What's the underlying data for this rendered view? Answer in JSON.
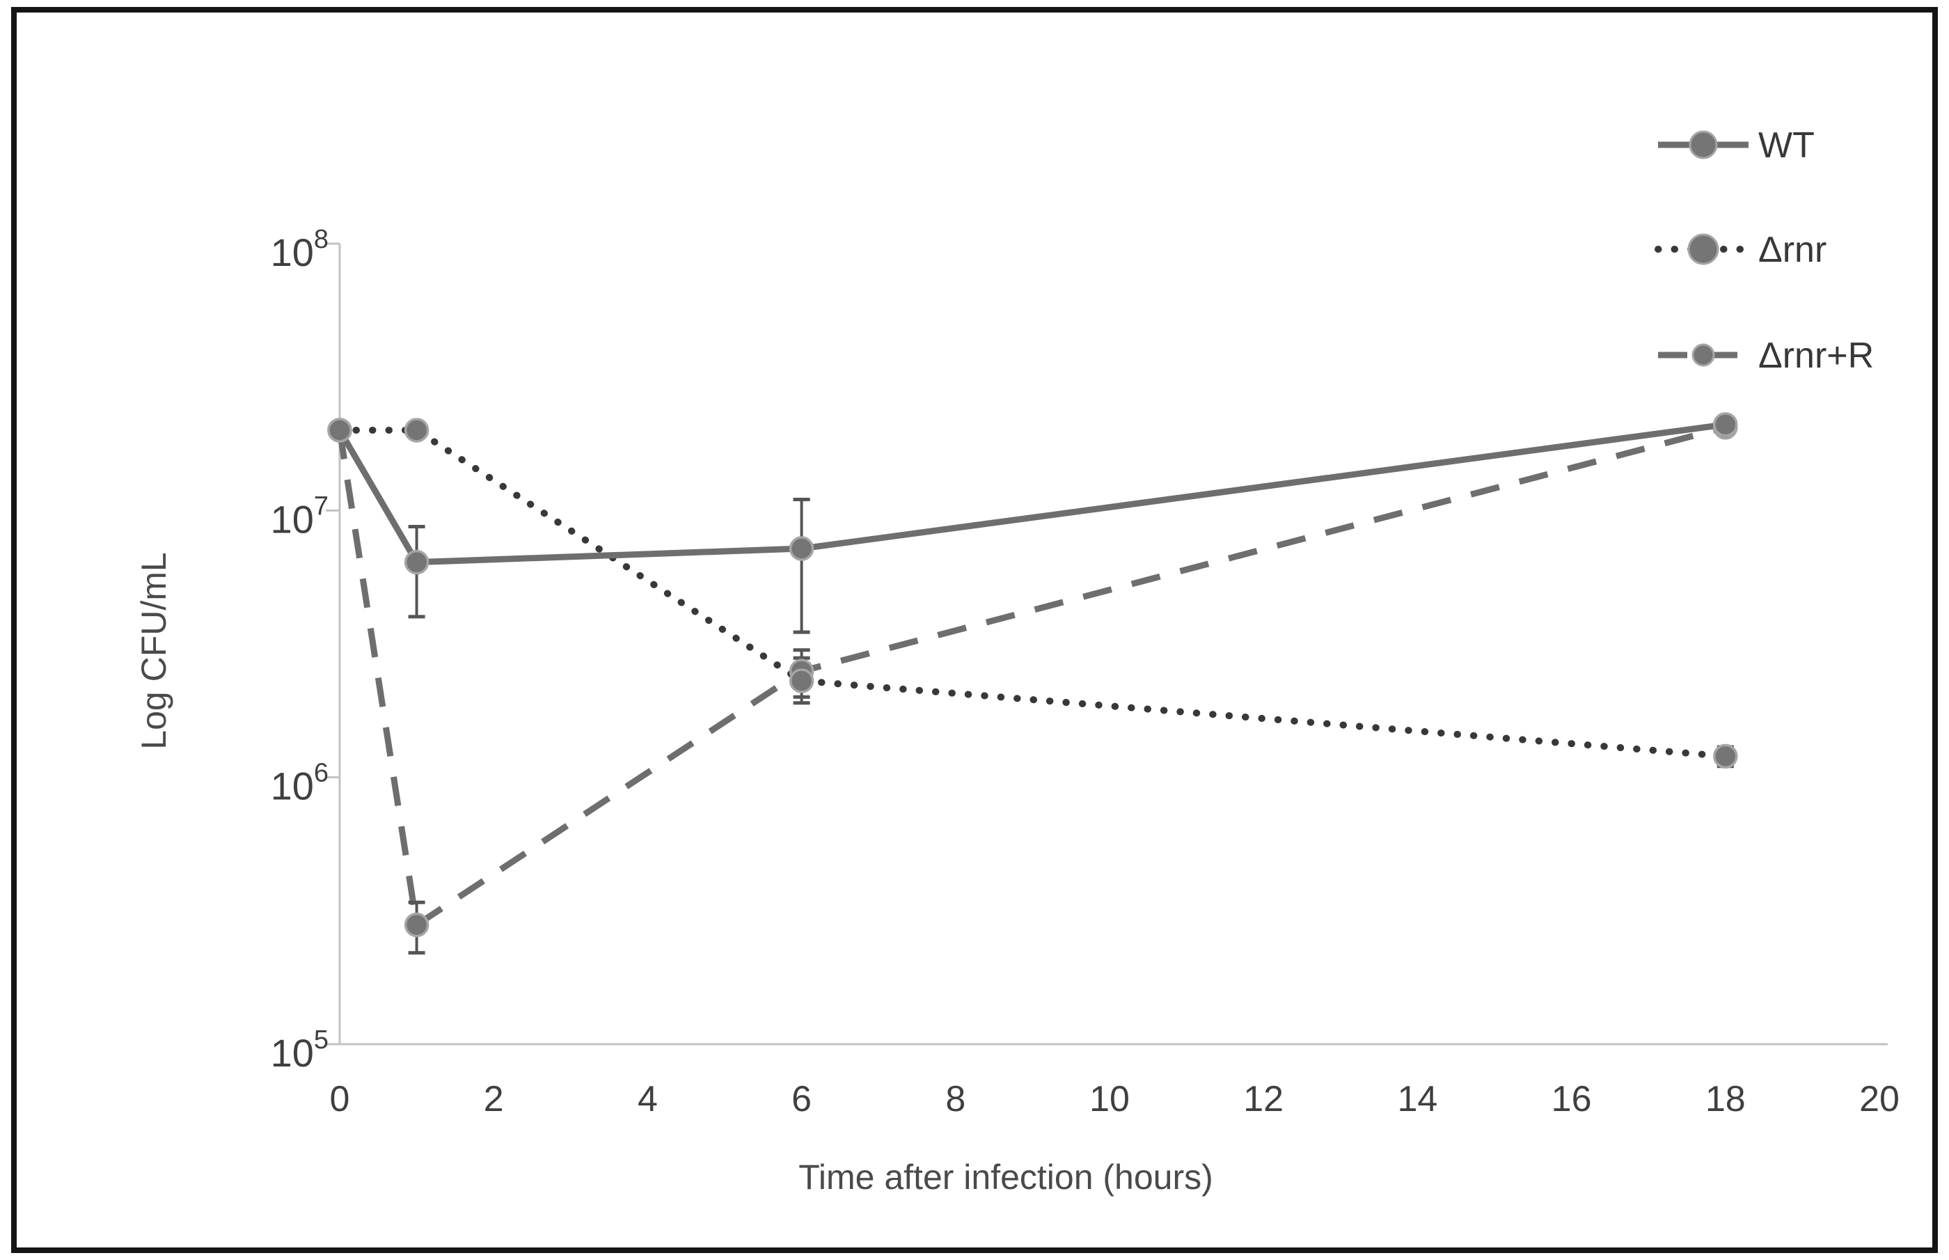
{
  "figure": {
    "background_color": "#ffffff",
    "frame_color": "#151515"
  },
  "chart_data": {
    "type": "line",
    "title": "",
    "xlabel": "Time after infection (hours)",
    "ylabel": "Log CFU/mL",
    "x_axis": {
      "min": 0,
      "max": 20,
      "tick_step": 2,
      "tick_labels": [
        "0",
        "2",
        "4",
        "6",
        "8",
        "10",
        "12",
        "14",
        "16",
        "18",
        "20"
      ]
    },
    "y_axis": {
      "scale": "log",
      "min": 100000.0,
      "max": 100000000.0,
      "tick_exponents": [
        8,
        7,
        6,
        5
      ],
      "tick_base": "10"
    },
    "grid": false,
    "legend_position": "top-right",
    "colors": {
      "axis_line": "#c2c2c2",
      "tick_text": "#3f3f3f",
      "axis_title_text": "#4a4a4a",
      "legend_text": "#383838",
      "error_bar": "#555555",
      "marker_fill": "#757575",
      "marker_ring": "#a5a5a5",
      "solid_line": "#6e6e6e",
      "dashed_line": "#6e6e6e",
      "dotted_line": "#383838"
    },
    "x": [
      0,
      1,
      6,
      18
    ],
    "series": [
      {
        "name": "WT",
        "line_style": "solid",
        "color": "#6e6e6e",
        "values": [
          20000000.0,
          6400000.0,
          7200000.0,
          21000000.0
        ],
        "error_lo": [
          null,
          4000000.0,
          3500000.0,
          null
        ],
        "error_hi": [
          null,
          8700000.0,
          11000000.0,
          null
        ]
      },
      {
        "name": "Δrnr",
        "line_style": "dotted",
        "color": "#383838",
        "values": [
          20000000.0,
          20000000.0,
          2300000.0,
          1200000.0
        ],
        "error_lo": [
          null,
          null,
          1900000.0,
          1100000.0
        ],
        "error_hi": [
          null,
          null,
          2800000.0,
          1300000.0
        ]
      },
      {
        "name": "Δrnr+R",
        "line_style": "dashed",
        "color": "#6e6e6e",
        "values": [
          20000000.0,
          280000.0,
          2500000.0,
          20500000.0
        ],
        "error_lo": [
          null,
          220000.0,
          2000000.0,
          null
        ],
        "error_hi": [
          null,
          340000.0,
          3000000.0,
          null
        ]
      }
    ]
  }
}
